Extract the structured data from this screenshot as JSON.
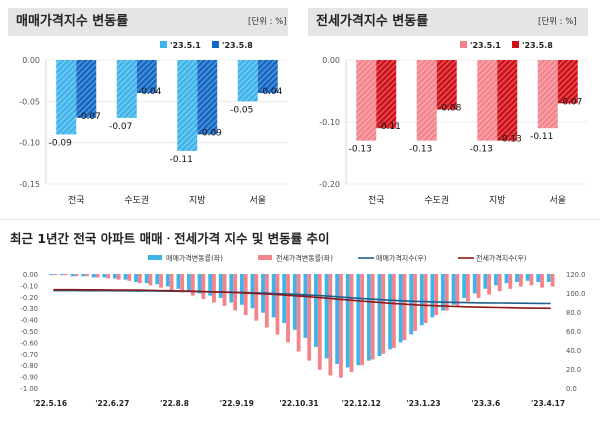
{
  "panel_left": {
    "title": "매매가격지수 변동률",
    "unit": "[단위 : %]"
  },
  "panel_right": {
    "title": "전세가격지수 변동률",
    "unit": "[단위 : %]"
  },
  "bottom": {
    "title": "최근 1년간 전국 아파트 매매ㆍ전세가격 지수 및 변동률 추이"
  },
  "colors": {
    "sale_light": "#3fb4ea",
    "sale_dark": "#1268c4",
    "rent_light": "#f4848c",
    "rent_dark": "#d01018",
    "sale_index_line": "#1f5f8b",
    "rent_index_line": "#8b1a1a"
  },
  "chart_data": [
    {
      "type": "bar",
      "title": "매매가격지수 변동률",
      "categories": [
        "전국",
        "수도권",
        "지방",
        "서울"
      ],
      "series": [
        {
          "name": "'23.5.1",
          "values": [
            -0.09,
            -0.07,
            -0.11,
            -0.05
          ]
        },
        {
          "name": "'23.5.8",
          "values": [
            -0.07,
            -0.04,
            -0.09,
            -0.04
          ]
        }
      ],
      "ylim": [
        -0.15,
        0.0
      ],
      "yticks": [
        0.0,
        -0.05,
        -0.1,
        -0.15
      ],
      "ytick_labels": [
        "0.00",
        "-0.05",
        "-0.10",
        "-0.15"
      ],
      "legend_position": "top-right"
    },
    {
      "type": "bar",
      "title": "전세가격지수 변동률",
      "categories": [
        "전국",
        "수도권",
        "지방",
        "서울"
      ],
      "series": [
        {
          "name": "'23.5.1",
          "values": [
            -0.13,
            -0.13,
            -0.13,
            -0.11
          ]
        },
        {
          "name": "'23.5.8",
          "values": [
            -0.11,
            -0.08,
            -0.13,
            -0.07
          ]
        }
      ],
      "ylim": [
        -0.2,
        0.0
      ],
      "yticks": [
        0.0,
        -0.1,
        -0.2
      ],
      "ytick_labels": [
        "0.00",
        "-0.10",
        "-0.20"
      ],
      "legend_position": "top-right"
    },
    {
      "type": "bar",
      "title": "최근 1년간 전국 아파트 매매ㆍ전세가격 지수 및 변동률 추이",
      "x_tick_labels": [
        "'22.5.16",
        "'22.6.27",
        "'22.8.8",
        "'22.9.19",
        "'22.10.31",
        "'22.12.12",
        "'23.1.23",
        "'23.3.6",
        "'23.4.17"
      ],
      "ylim_left": [
        -1.0,
        0.0
      ],
      "yticks_left_labels": [
        "0.00",
        "-0.10",
        "-0.20",
        "-0.30",
        "-0.40",
        "-0.50",
        "-0.60",
        "-0.70",
        "-0.80",
        "-0.90",
        "-1.00"
      ],
      "ylim_right": [
        0.0,
        120.0
      ],
      "yticks_right_labels": [
        "0.0",
        "20.0",
        "40.0",
        "60.0",
        "80.0",
        "100.0",
        "120.0"
      ],
      "legend_position": "top",
      "series": [
        {
          "name": "매매가격변동률(좌)",
          "type": "bar",
          "axis": "left",
          "values": [
            -0.01,
            -0.01,
            -0.02,
            -0.02,
            -0.03,
            -0.03,
            -0.04,
            -0.05,
            -0.07,
            -0.08,
            -0.09,
            -0.11,
            -0.13,
            -0.15,
            -0.17,
            -0.19,
            -0.21,
            -0.25,
            -0.27,
            -0.3,
            -0.34,
            -0.38,
            -0.43,
            -0.49,
            -0.56,
            -0.64,
            -0.74,
            -0.79,
            -0.82,
            -0.8,
            -0.76,
            -0.72,
            -0.66,
            -0.6,
            -0.53,
            -0.45,
            -0.38,
            -0.32,
            -0.27,
            -0.21,
            -0.17,
            -0.13,
            -0.1,
            -0.08,
            -0.07,
            -0.06,
            -0.07,
            -0.07
          ]
        },
        {
          "name": "전세가격변동률(좌)",
          "type": "bar",
          "axis": "left",
          "values": [
            -0.01,
            -0.01,
            -0.02,
            -0.02,
            -0.03,
            -0.04,
            -0.05,
            -0.06,
            -0.08,
            -0.1,
            -0.12,
            -0.14,
            -0.16,
            -0.19,
            -0.22,
            -0.25,
            -0.28,
            -0.32,
            -0.36,
            -0.41,
            -0.47,
            -0.53,
            -0.6,
            -0.68,
            -0.76,
            -0.84,
            -0.89,
            -0.91,
            -0.86,
            -0.8,
            -0.75,
            -0.7,
            -0.65,
            -0.58,
            -0.5,
            -0.43,
            -0.36,
            -0.32,
            -0.28,
            -0.24,
            -0.21,
            -0.18,
            -0.15,
            -0.13,
            -0.11,
            -0.1,
            -0.12,
            -0.11
          ]
        },
        {
          "name": "매매가격지수(우)",
          "type": "line",
          "axis": "right",
          "values": [
            102.5,
            102.5,
            102.5,
            102.4,
            102.4,
            102.4,
            102.3,
            102.3,
            102.2,
            102.1,
            102.0,
            101.9,
            101.8,
            101.6,
            101.4,
            101.2,
            101.0,
            100.8,
            100.5,
            100.2,
            99.9,
            99.5,
            99.1,
            98.6,
            98.0,
            97.4,
            96.7,
            95.9,
            95.1,
            94.3,
            93.6,
            92.9,
            92.3,
            91.8,
            91.3,
            90.9,
            90.6,
            90.3,
            90.1,
            89.9,
            89.7,
            89.6,
            89.5,
            89.4,
            89.3,
            89.2,
            89.1,
            89.0
          ]
        },
        {
          "name": "전세가격지수(우)",
          "type": "line",
          "axis": "right",
          "values": [
            103.5,
            103.5,
            103.5,
            103.4,
            103.4,
            103.3,
            103.2,
            103.1,
            103.0,
            102.8,
            102.6,
            102.4,
            102.2,
            101.9,
            101.6,
            101.3,
            100.9,
            100.5,
            100.1,
            99.6,
            99.0,
            98.4,
            97.7,
            97.0,
            96.2,
            95.3,
            94.4,
            93.4,
            92.5,
            91.6,
            90.7,
            89.9,
            89.1,
            88.4,
            87.7,
            87.1,
            86.6,
            86.2,
            85.8,
            85.5,
            85.2,
            84.9,
            84.7,
            84.5,
            84.3,
            84.1,
            84.0,
            83.9
          ]
        }
      ]
    }
  ]
}
